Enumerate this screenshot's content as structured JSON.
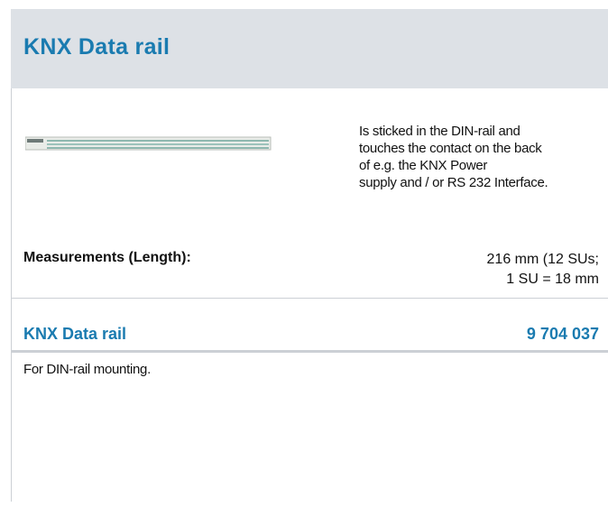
{
  "header": {
    "title": "KNX Data rail"
  },
  "description": [
    "Is sticked in the DIN-rail and",
    "touches the contact on the back",
    "of e.g. the KNX Power",
    "supply and / or RS 232 Interface."
  ],
  "measurements": {
    "label": "Measurements (Length):",
    "value": [
      "216 mm (12 SUs;",
      "1 SU = 18 mm"
    ]
  },
  "product": {
    "name": "KNX Data rail",
    "number": "9 704 037"
  },
  "note": "For DIN-rail mounting."
}
